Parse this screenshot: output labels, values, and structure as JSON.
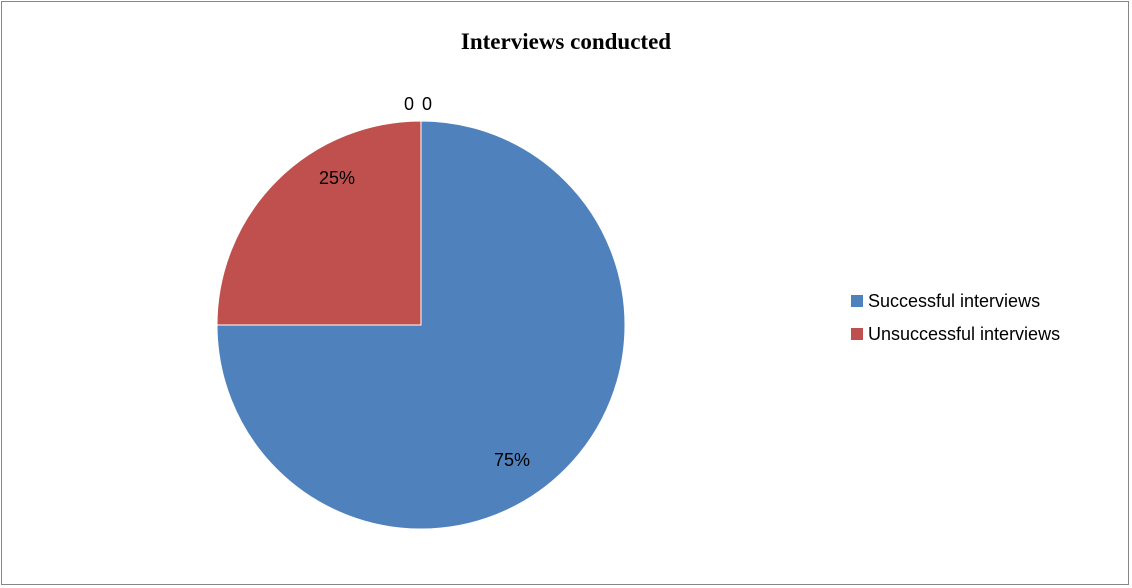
{
  "chart_data": {
    "type": "pie",
    "title": "Interviews conducted",
    "categories": [
      "Successful interviews",
      "Unsuccessful interviews"
    ],
    "values": [
      75,
      25
    ],
    "labels": [
      "75%",
      "25%"
    ],
    "colors": [
      "#4F81BD",
      "#C0504D"
    ],
    "extra_labels": [
      "0",
      "0"
    ],
    "legend": "right"
  }
}
